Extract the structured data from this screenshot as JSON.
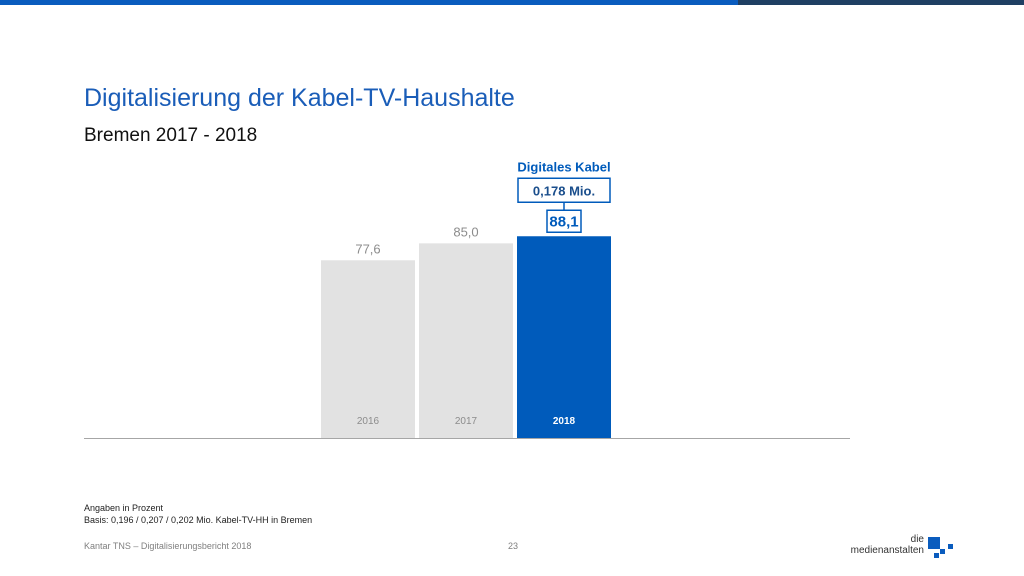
{
  "header": {
    "title": "Digitalisierung der Kabel-TV-Haushalte",
    "subtitle": "Bremen 2017 - 2018"
  },
  "chart_data": {
    "type": "bar",
    "categories": [
      "2016",
      "2017",
      "2018"
    ],
    "values": [
      77.6,
      85.0,
      88.1
    ],
    "value_labels": [
      "77,6",
      "85,0",
      "88,1"
    ],
    "bar_colors": [
      "#E2E2E2",
      "#E2E2E2",
      "#005BBB"
    ],
    "label_colors": [
      "#8C8C8C",
      "#8C8C8C",
      "#005BBB"
    ],
    "category_label_colors": [
      "#8C8C8C",
      "#8C8C8C",
      "#FFFFFF"
    ],
    "highlight": {
      "title": "Digitales Kabel",
      "value": "0,178 Mio."
    },
    "ylim": [
      0,
      100
    ],
    "grid": false
  },
  "notes": {
    "line1": "Angaben in Prozent",
    "line2": "Basis: 0,196 / 0,207 / 0,202 Mio. Kabel-TV-HH in Bremen"
  },
  "footer": {
    "source": "Kantar TNS – Digitalisierungsbericht 2018",
    "page": "23"
  },
  "logo": {
    "line1": "die",
    "line2": "medienanstalten"
  },
  "colors": {
    "accent": "#005BBB",
    "title": "#1A5DB8",
    "bar_grey": "#E2E2E2",
    "topbar": "#0A5CBE",
    "topbar_dark": "#1F3F63"
  }
}
